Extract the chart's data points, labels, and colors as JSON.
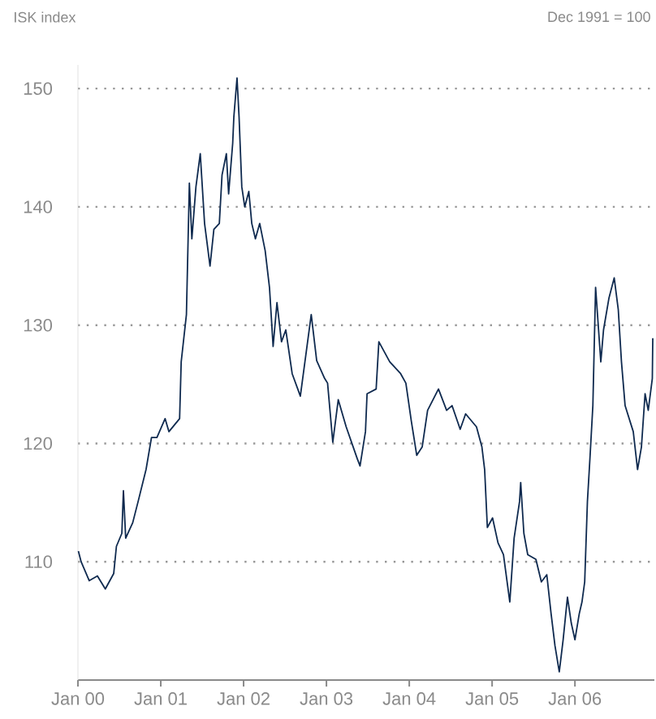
{
  "chart_data": {
    "type": "line",
    "ylabel": "ISK index",
    "annotations": [
      "Dec 1991 = 100"
    ],
    "xlim": [
      "2000-01-01",
      "2006-12-17"
    ],
    "xticks": [
      {
        "value": "2000-01",
        "label": "Jan 00"
      },
      {
        "value": "2001-01",
        "label": "Jan 01"
      },
      {
        "value": "2002-01",
        "label": "Jan 02"
      },
      {
        "value": "2003-01",
        "label": "Jan 03"
      },
      {
        "value": "2004-01",
        "label": "Jan 04"
      },
      {
        "value": "2005-01",
        "label": "Jan 05"
      },
      {
        "value": "2006-01",
        "label": "Jan 06"
      }
    ],
    "ylim": [
      100,
      152
    ],
    "yticks": [
      110,
      120,
      130,
      140,
      150
    ],
    "grid": "y",
    "x": [
      "2000-01-03",
      "2000-01-15",
      "2000-02-20",
      "2000-03-27",
      "2000-05-01",
      "2000-06-07",
      "2000-06-19",
      "2000-07-13",
      "2000-07-20",
      "2000-07-30",
      "2000-08-30",
      "2000-09-23",
      "2000-10-28",
      "2000-11-21",
      "2000-12-15",
      "2001-01-20",
      "2001-02-06",
      "2001-03-25",
      "2001-04-01",
      "2001-04-24",
      "2001-05-07",
      "2001-05-18",
      "2001-06-05",
      "2001-06-24",
      "2001-07-13",
      "2001-08-06",
      "2001-08-23",
      "2001-09-16",
      "2001-09-28",
      "2001-10-17",
      "2001-10-27",
      "2001-11-14",
      "2001-11-19",
      "2001-12-03",
      "2001-12-12",
      "2001-12-24",
      "2002-01-06",
      "2002-01-24",
      "2002-02-06",
      "2002-02-22",
      "2002-03-13",
      "2002-04-06",
      "2002-04-25",
      "2002-05-11",
      "2002-05-28",
      "2002-06-17",
      "2002-07-06",
      "2002-08-03",
      "2002-09-08",
      "2002-10-26",
      "2002-11-19",
      "2002-12-24",
      "2003-01-06",
      "2003-01-29",
      "2003-02-22",
      "2003-03-29",
      "2003-05-17",
      "2003-05-29",
      "2003-06-22",
      "2003-06-29",
      "2003-08-08",
      "2003-08-20",
      "2003-10-07",
      "2003-11-24",
      "2003-12-17",
      "2004-01-10",
      "2004-02-03",
      "2004-02-27",
      "2004-03-22",
      "2004-05-09",
      "2004-06-14",
      "2004-07-08",
      "2004-08-13",
      "2004-09-06",
      "2004-10-24",
      "2004-11-17",
      "2004-11-29",
      "2004-12-11",
      "2005-01-03",
      "2005-01-27",
      "2005-02-20",
      "2005-03-20",
      "2005-04-08",
      "2005-05-02",
      "2005-05-07",
      "2005-05-21",
      "2005-06-07",
      "2005-07-13",
      "2005-08-06",
      "2005-08-30",
      "2005-09-18",
      "2005-10-05",
      "2005-10-24",
      "2005-11-10",
      "2005-11-29",
      "2005-12-16",
      "2006-01-01",
      "2006-01-20",
      "2006-02-01",
      "2006-02-13",
      "2006-02-25",
      "2006-03-08",
      "2006-03-21",
      "2006-04-02",
      "2006-04-25",
      "2006-05-07",
      "2006-05-31",
      "2006-06-23",
      "2006-07-11",
      "2006-07-25",
      "2006-08-10",
      "2006-09-15",
      "2006-10-04",
      "2006-10-21",
      "2006-11-06",
      "2006-11-20",
      "2006-12-08",
      "2006-12-10"
    ],
    "series": [
      {
        "color": "#0f2a4f",
        "values": [
          110.9,
          110,
          108.4,
          108.8,
          107.7,
          109,
          111.3,
          112.4,
          116,
          112,
          113.3,
          115.1,
          117.8,
          120.5,
          120.5,
          122.1,
          121,
          122.1,
          126.9,
          130.9,
          142,
          137.3,
          141.7,
          144.5,
          138.6,
          135,
          138.1,
          138.6,
          142.7,
          144.5,
          141.1,
          145.4,
          147.6,
          150.9,
          147.6,
          141.7,
          140,
          141.3,
          138.6,
          137.3,
          138.6,
          136.3,
          133.2,
          128.2,
          131.9,
          128.6,
          129.6,
          125.9,
          124,
          130.9,
          127,
          125.5,
          125.1,
          120.1,
          123.7,
          121.4,
          118.7,
          118.1,
          121,
          124.2,
          124.6,
          128.6,
          126.9,
          125.9,
          125.1,
          121.9,
          119,
          119.7,
          122.8,
          124.6,
          122.8,
          123.2,
          121.2,
          122.5,
          121.4,
          119.7,
          117.8,
          112.9,
          113.7,
          111.6,
          110.6,
          106.6,
          112,
          115.1,
          116.7,
          112.4,
          110.6,
          110.2,
          108.3,
          108.9,
          105.6,
          102.9,
          100.7,
          103.4,
          107,
          104.8,
          103.4,
          105.6,
          106.6,
          108.3,
          115.1,
          118.7,
          123.2,
          133.2,
          126.9,
          129.6,
          132.3,
          134,
          131.3,
          126.9,
          123.2,
          121,
          117.8,
          119.7,
          124.2,
          122.8,
          125.5,
          128.9
        ]
      }
    ]
  }
}
